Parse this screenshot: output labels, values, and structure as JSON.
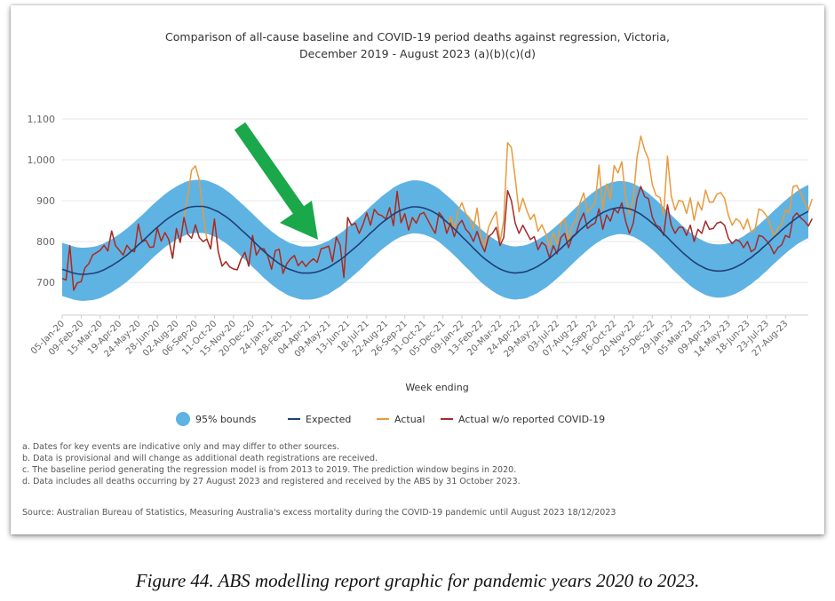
{
  "chart_data": {
    "type": "line",
    "title_line1": "Comparison of all-cause baseline and COVID-19 period deaths against regression, Victoria,",
    "title_line2": "December 2019 - August 2023 (a)(b)(c)(d)",
    "xlabel": "Week ending",
    "ylabel": "",
    "ylim": [
      620,
      1100
    ],
    "yticks": [
      "700",
      "800",
      "900",
      "1,000",
      "1,100"
    ],
    "ytick_values": [
      700,
      800,
      900,
      1000,
      1100
    ],
    "x_tick_labels": [
      "05-Jan-20",
      "09-Feb-20",
      "15-Mar-20",
      "19-Apr-20",
      "24-May-20",
      "28-Jun-20",
      "02-Aug-20",
      "06-Sep-20",
      "11-Oct-20",
      "15-Nov-20",
      "20-Dec-20",
      "24-Jan-21",
      "28-Feb-21",
      "04-Apr-21",
      "09-May-21",
      "13-Jun-21",
      "18-Jul-21",
      "22-Aug-21",
      "26-Sep-21",
      "31-Oct-21",
      "05-Dec-21",
      "09-Jan-22",
      "13-Feb-22",
      "20-Mar-22",
      "24-Apr-22",
      "29-May-22",
      "03-Jul-22",
      "07-Aug-22",
      "11-Sep-22",
      "16-Oct-22",
      "20-Nov-22",
      "25-Dec-22",
      "29-Jan-23",
      "05-Mar-23",
      "09-Apr-23",
      "14-May-23",
      "18-Jun-23",
      "23-Jul-23",
      "27-Aug-23"
    ],
    "week_index_of_ticks": [
      0,
      5,
      10,
      15,
      20,
      25,
      30,
      35,
      40,
      45,
      50,
      55,
      60,
      65,
      70,
      75,
      80,
      85,
      90,
      95,
      100,
      105,
      110,
      115,
      120,
      125,
      130,
      135,
      140,
      145,
      150,
      155,
      160,
      165,
      170,
      175,
      180,
      185,
      190
    ],
    "series": [
      {
        "name": "95% bounds",
        "kind": "band",
        "color": "#5fb3e3",
        "lower": [
          667,
          664,
          661,
          658,
          656,
          655,
          655,
          656,
          657,
          659,
          662,
          666,
          671,
          676,
          682,
          688,
          695,
          702,
          710,
          718,
          727,
          735,
          744,
          753,
          762,
          770,
          778,
          786,
          793,
          799,
          805,
          810,
          814,
          818,
          820,
          821,
          821,
          821,
          819,
          816,
          812,
          808,
          802,
          796,
          789,
          781,
          773,
          764,
          756,
          747,
          738,
          729,
          720,
          711,
          703,
          695,
          688,
          681,
          676,
          670,
          666,
          663,
          660,
          658,
          658,
          658,
          659,
          661,
          664,
          668,
          672,
          678,
          684,
          690,
          697,
          705,
          713,
          721,
          729,
          738,
          747,
          756,
          764,
          773,
          781,
          788,
          795,
          802,
          807,
          812,
          815,
          818,
          820,
          820,
          819,
          817,
          814,
          810,
          805,
          799,
          791,
          783,
          775,
          766,
          757,
          747,
          738,
          729,
          719,
          710,
          701,
          693,
          686,
          679,
          673,
          668,
          664,
          661,
          659,
          658,
          659,
          660,
          662,
          666,
          670,
          675,
          681,
          687,
          694,
          702,
          710,
          718,
          727,
          736,
          745,
          754,
          763,
          771,
          779,
          787,
          794,
          800,
          806,
          810,
          814,
          816,
          818,
          818,
          817,
          815,
          812,
          807,
          802,
          795,
          788,
          780,
          772,
          763,
          754,
          745,
          735,
          726,
          717,
          708,
          700,
          692,
          685,
          679,
          674,
          669,
          666,
          664,
          663,
          663,
          664,
          666,
          669,
          673,
          678,
          683,
          690,
          696,
          704,
          711,
          720,
          728,
          737,
          746,
          754,
          763,
          771,
          779,
          786,
          793,
          799,
          804,
          809
        ],
        "upper": [
          797,
          794,
          791,
          788,
          786,
          785,
          785,
          786,
          787,
          789,
          792,
          796,
          801,
          806,
          812,
          818,
          825,
          832,
          840,
          848,
          857,
          865,
          874,
          883,
          892,
          900,
          908,
          916,
          923,
          929,
          935,
          940,
          944,
          948,
          950,
          951,
          951,
          951,
          949,
          946,
          942,
          938,
          932,
          926,
          919,
          911,
          903,
          894,
          886,
          877,
          868,
          859,
          850,
          841,
          833,
          825,
          818,
          811,
          806,
          800,
          796,
          793,
          790,
          788,
          788,
          788,
          789,
          791,
          794,
          798,
          802,
          808,
          814,
          820,
          827,
          835,
          843,
          851,
          859,
          868,
          877,
          886,
          894,
          903,
          911,
          918,
          925,
          932,
          937,
          942,
          945,
          948,
          950,
          950,
          949,
          947,
          944,
          940,
          935,
          929,
          921,
          913,
          905,
          896,
          887,
          877,
          868,
          859,
          849,
          840,
          831,
          823,
          816,
          809,
          803,
          798,
          794,
          791,
          789,
          788,
          789,
          790,
          792,
          796,
          800,
          805,
          811,
          817,
          824,
          832,
          840,
          848,
          857,
          866,
          875,
          884,
          893,
          901,
          909,
          917,
          924,
          930,
          936,
          940,
          944,
          946,
          948,
          948,
          947,
          945,
          942,
          937,
          932,
          925,
          918,
          910,
          902,
          893,
          884,
          875,
          865,
          856,
          847,
          838,
          830,
          822,
          815,
          809,
          804,
          799,
          796,
          794,
          793,
          793,
          794,
          796,
          799,
          803,
          808,
          813,
          820,
          826,
          834,
          841,
          850,
          858,
          867,
          876,
          884,
          893,
          901,
          909,
          916,
          923,
          929,
          934,
          939
        ]
      },
      {
        "name": "Expected",
        "kind": "line",
        "color": "#1f3f73",
        "values": [
          732,
          729,
          726,
          723,
          721,
          720,
          720,
          721,
          722,
          724,
          727,
          731,
          736,
          741,
          747,
          753,
          760,
          767,
          775,
          783,
          792,
          800,
          809,
          818,
          827,
          835,
          843,
          851,
          858,
          864,
          870,
          875,
          879,
          883,
          885,
          886,
          886,
          886,
          884,
          881,
          877,
          873,
          867,
          861,
          854,
          846,
          838,
          829,
          821,
          812,
          803,
          794,
          785,
          776,
          768,
          760,
          753,
          746,
          741,
          735,
          731,
          728,
          725,
          723,
          723,
          723,
          724,
          726,
          729,
          733,
          737,
          743,
          749,
          755,
          762,
          770,
          778,
          786,
          794,
          803,
          812,
          821,
          829,
          838,
          846,
          853,
          860,
          867,
          872,
          877,
          880,
          883,
          885,
          885,
          884,
          882,
          879,
          875,
          870,
          864,
          856,
          848,
          840,
          831,
          822,
          812,
          803,
          794,
          784,
          775,
          766,
          758,
          751,
          744,
          738,
          733,
          729,
          726,
          724,
          723,
          724,
          725,
          727,
          731,
          735,
          740,
          746,
          752,
          759,
          767,
          775,
          783,
          792,
          801,
          810,
          819,
          828,
          836,
          844,
          852,
          859,
          865,
          871,
          875,
          879,
          881,
          883,
          883,
          882,
          880,
          877,
          872,
          867,
          860,
          853,
          845,
          837,
          828,
          819,
          810,
          800,
          791,
          782,
          773,
          765,
          757,
          750,
          744,
          739,
          734,
          731,
          729,
          728,
          728,
          729,
          731,
          734,
          738,
          743,
          748,
          755,
          761,
          769,
          776,
          785,
          793,
          802,
          811,
          819,
          828,
          836,
          844,
          851,
          858,
          864,
          869,
          874
        ]
      },
      {
        "name": "Actual",
        "kind": "line",
        "color": "#e99a3c",
        "values": [
          710,
          706,
          790,
          681,
          699,
          702,
          736,
          746,
          767,
          773,
          779,
          791,
          777,
          826,
          790,
          779,
          767,
          791,
          779,
          775,
          843,
          800,
          803,
          786,
          787,
          833,
          801,
          822,
          805,
          759,
          832,
          798,
          859,
          912,
          975,
          985,
          951,
          870,
          806,
          782,
          855,
          775,
          740,
          751,
          738,
          733,
          731,
          757,
          774,
          740,
          815,
          767,
          783,
          782,
          765,
          732,
          778,
          781,
          722,
          746,
          758,
          766,
          741,
          752,
          739,
          750,
          758,
          749,
          782,
          785,
          789,
          751,
          811,
          791,
          712,
          859,
          840,
          845,
          820,
          841,
          870,
          840,
          879,
          867,
          863,
          855,
          883,
          839,
          923,
          846,
          868,
          828,
          859,
          845,
          867,
          871,
          854,
          836,
          820,
          871,
          859,
          820,
          862,
          830,
          875,
          895,
          868,
          858,
          830,
          882,
          810,
          789,
          835,
          856,
          873,
          798,
          852,
          1042,
          1030,
          955,
          873,
          906,
          877,
          854,
          867,
          825,
          841,
          820,
          786,
          822,
          793,
          845,
          856,
          800,
          840,
          852,
          894,
          919,
          872,
          883,
          893,
          987,
          878,
          941,
          902,
          986,
          968,
          995,
          908,
          867,
          902,
          1006,
          1058,
          1024,
          1002,
          940,
          913,
          908,
          866,
          1009,
          911,
          877,
          901,
          898,
          869,
          907,
          852,
          897,
          877,
          926,
          896,
          897,
          916,
          920,
          906,
          864,
          840,
          856,
          849,
          830,
          855,
          823,
          829,
          880,
          875,
          863,
          841,
          811,
          833,
          842,
          878,
          870,
          935,
          937,
          918,
          897,
          876,
          904
        ]
      },
      {
        "name": "Actual w/o reported COVID-19",
        "kind": "line",
        "color": "#a52a2a",
        "values": [
          710,
          706,
          790,
          681,
          699,
          702,
          736,
          746,
          767,
          773,
          779,
          791,
          777,
          826,
          790,
          779,
          767,
          791,
          779,
          775,
          843,
          800,
          803,
          786,
          787,
          833,
          801,
          822,
          805,
          759,
          832,
          798,
          859,
          818,
          808,
          841,
          810,
          800,
          806,
          782,
          855,
          775,
          740,
          751,
          738,
          733,
          731,
          757,
          774,
          740,
          815,
          767,
          783,
          782,
          765,
          732,
          778,
          781,
          722,
          746,
          758,
          766,
          741,
          752,
          739,
          750,
          758,
          749,
          782,
          785,
          789,
          751,
          811,
          791,
          712,
          859,
          840,
          845,
          820,
          841,
          870,
          840,
          879,
          867,
          863,
          855,
          883,
          839,
          923,
          846,
          868,
          828,
          859,
          845,
          867,
          871,
          854,
          836,
          820,
          871,
          859,
          820,
          845,
          812,
          840,
          852,
          830,
          820,
          800,
          825,
          795,
          775,
          812,
          820,
          835,
          790,
          810,
          925,
          900,
          845,
          820,
          840,
          822,
          805,
          812,
          780,
          798,
          790,
          760,
          790,
          770,
          810,
          820,
          785,
          812,
          820,
          850,
          870,
          832,
          840,
          845,
          880,
          830,
          865,
          850,
          880,
          870,
          895,
          850,
          820,
          845,
          905,
          935,
          910,
          905,
          860,
          840,
          835,
          815,
          890,
          840,
          820,
          835,
          835,
          815,
          840,
          800,
          830,
          820,
          850,
          830,
          832,
          845,
          848,
          840,
          808,
          795,
          805,
          800,
          785,
          800,
          775,
          782,
          815,
          812,
          802,
          790,
          770,
          785,
          792,
          815,
          810,
          860,
          870,
          858,
          850,
          838,
          856
        ]
      }
    ]
  },
  "legend": {
    "bounds": "95% bounds",
    "expected": "Expected",
    "actual": "Actual",
    "actual_wo": "Actual w/o reported COVID-19"
  },
  "notes": [
    "a. Dates for key events are indicative only and may differ to other sources.",
    "b. Data is provisional and will change as additional death registrations are received.",
    "c. The baseline period generating the regression model is from 2013 to 2019. The prediction window begins in 2020.",
    "d. Data includes all deaths occurring by 27 August 2023 and registered and received by the ABS by 31 October 2023."
  ],
  "source": "Source: Australian Bureau of Statistics, Measuring Australia's excess mortality during the COVID-19 pandemic until August 2023 18/12/2023",
  "caption": "Figure 44. ABS modelling report graphic for pandemic years 2020 to 2023.",
  "annotation": {
    "arrow_color": "#1aa84a"
  },
  "colors": {
    "band": "#5fb3e3",
    "expected": "#1f3f73",
    "actual": "#e99a3c",
    "actual_wo": "#a52a2a"
  }
}
